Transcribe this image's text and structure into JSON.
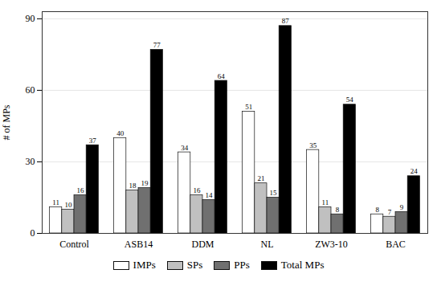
{
  "chart_data": {
    "type": "bar",
    "categories": [
      "Control",
      "ASB14",
      "DDM",
      "NL",
      "ZW3-10",
      "BAC"
    ],
    "series": [
      {
        "name": "IMPs",
        "color": "#ffffff",
        "values": [
          11,
          40,
          34,
          51,
          35,
          8
        ]
      },
      {
        "name": "SPs",
        "color": "#c0c0c0",
        "values": [
          10,
          18,
          16,
          21,
          11,
          7
        ]
      },
      {
        "name": "PPs",
        "color": "#707070",
        "values": [
          16,
          19,
          14,
          15,
          8,
          9
        ]
      },
      {
        "name": "Total MPs",
        "color": "#000000",
        "values": [
          37,
          77,
          64,
          87,
          54,
          24
        ]
      }
    ],
    "ylabel": "# of MPs",
    "ylim": [
      0,
      93
    ],
    "yticks": [
      0,
      30,
      60,
      90
    ],
    "grid": true,
    "data_labels": true,
    "legend": "bottom"
  }
}
